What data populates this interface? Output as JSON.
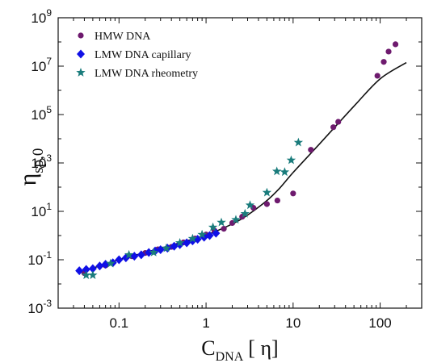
{
  "chart_data": {
    "type": "scatter",
    "xscale": "log",
    "yscale": "log",
    "xlim": [
      0.02,
      300
    ],
    "ylim": [
      0.001,
      1000000000
    ],
    "xticks": [
      {
        "value": 0.1,
        "label": "0.1"
      },
      {
        "value": 1,
        "label": "1"
      },
      {
        "value": 10,
        "label": "10"
      },
      {
        "value": 100,
        "label": "100"
      }
    ],
    "yticks": [
      {
        "value": 0.001,
        "base": "10",
        "exp": "-3"
      },
      {
        "value": 0.1,
        "base": "10",
        "exp": "-1"
      },
      {
        "value": 10,
        "base": "10",
        "exp": "1"
      },
      {
        "value": 1000,
        "base": "10",
        "exp": "3"
      },
      {
        "value": 100000,
        "base": "10",
        "exp": "5"
      },
      {
        "value": 10000000,
        "base": "10",
        "exp": "7"
      },
      {
        "value": 1000000000,
        "base": "10",
        "exp": "9"
      }
    ],
    "xlabel": {
      "main": "C",
      "sub": "DNA",
      "bracket": "[ η]"
    },
    "ylabel": {
      "main": "η",
      "sub": "sp,0"
    },
    "grid": false,
    "legend_position": "top-left",
    "series": [
      {
        "name": "HMW DNA",
        "marker": "circle",
        "color": "#6e1a6e",
        "points": [
          [
            0.04,
            0.028
          ],
          [
            0.07,
            0.058
          ],
          [
            0.1,
            0.1
          ],
          [
            0.14,
            0.14
          ],
          [
            0.2,
            0.19
          ],
          [
            0.28,
            0.27
          ],
          [
            0.4,
            0.34
          ],
          [
            0.55,
            0.52
          ],
          [
            0.75,
            0.75
          ],
          [
            1.0,
            1.1
          ],
          [
            1.25,
            1.6
          ],
          [
            1.6,
            1.9
          ],
          [
            2.0,
            3.3
          ],
          [
            2.6,
            6.0
          ],
          [
            3.5,
            14
          ],
          [
            5.0,
            20
          ],
          [
            6.6,
            28
          ],
          [
            10,
            55
          ],
          [
            16,
            3500
          ],
          [
            29,
            30000
          ],
          [
            33,
            50000
          ],
          [
            93,
            4000000
          ],
          [
            110,
            15000000
          ],
          [
            125,
            40000000
          ],
          [
            150,
            80000000
          ]
        ]
      },
      {
        "name": "LMW DNA capillary",
        "marker": "diamond",
        "color": "#1010e6",
        "points": [
          [
            0.035,
            0.035
          ],
          [
            0.042,
            0.04
          ],
          [
            0.05,
            0.043
          ],
          [
            0.06,
            0.055
          ],
          [
            0.07,
            0.065
          ],
          [
            0.085,
            0.075
          ],
          [
            0.1,
            0.1
          ],
          [
            0.12,
            0.12
          ],
          [
            0.15,
            0.14
          ],
          [
            0.18,
            0.16
          ],
          [
            0.22,
            0.2
          ],
          [
            0.26,
            0.23
          ],
          [
            0.3,
            0.26
          ],
          [
            0.36,
            0.3
          ],
          [
            0.43,
            0.36
          ],
          [
            0.5,
            0.42
          ],
          [
            0.6,
            0.5
          ],
          [
            0.7,
            0.6
          ],
          [
            0.8,
            0.7
          ],
          [
            0.95,
            0.85
          ],
          [
            1.1,
            1.0
          ],
          [
            1.3,
            1.25
          ]
        ]
      },
      {
        "name": "LMW DNA rheometry",
        "marker": "star",
        "color": "#1a7c7c",
        "points": [
          [
            0.042,
            0.023
          ],
          [
            0.05,
            0.023
          ],
          [
            0.08,
            0.07
          ],
          [
            0.13,
            0.16
          ],
          [
            0.25,
            0.2
          ],
          [
            0.35,
            0.3
          ],
          [
            0.5,
            0.5
          ],
          [
            0.7,
            0.75
          ],
          [
            0.9,
            1.1
          ],
          [
            1.2,
            2.2
          ],
          [
            1.5,
            3.5
          ],
          [
            2.2,
            4.5
          ],
          [
            2.8,
            8
          ],
          [
            3.2,
            18
          ],
          [
            5.0,
            60
          ],
          [
            6.5,
            450
          ],
          [
            8.0,
            420
          ],
          [
            9.5,
            1300
          ],
          [
            11.5,
            7000
          ]
        ]
      }
    ],
    "fit_curve": {
      "color": "#111111",
      "points": [
        [
          0.035,
          0.03
        ],
        [
          0.05,
          0.045
        ],
        [
          0.1,
          0.1
        ],
        [
          0.2,
          0.2
        ],
        [
          0.5,
          0.5
        ],
        [
          1.0,
          1.05
        ],
        [
          2.0,
          3.0
        ],
        [
          3.0,
          7.0
        ],
        [
          5.0,
          28
        ],
        [
          7.0,
          90
        ],
        [
          10,
          400
        ],
        [
          20,
          6000
        ],
        [
          50,
          220000
        ],
        [
          100,
          3000000
        ],
        [
          200,
          14000000
        ]
      ]
    }
  }
}
